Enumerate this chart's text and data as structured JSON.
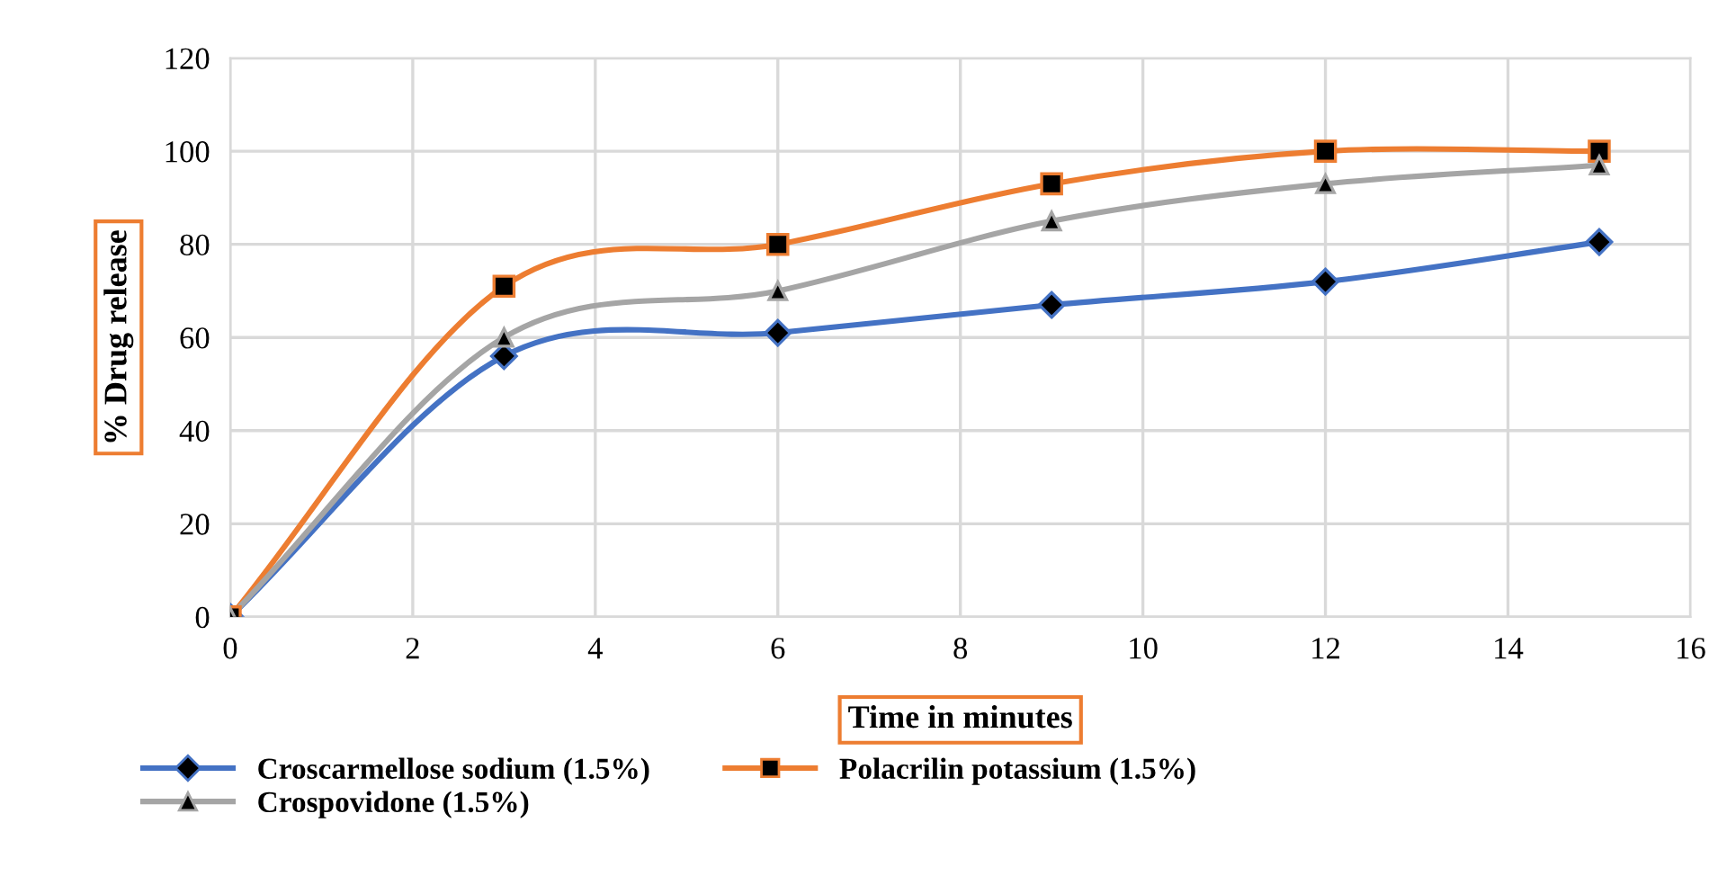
{
  "chart_data": {
    "type": "line",
    "xlabel": "Time in minutes",
    "ylabel": "% Drug release",
    "x": [
      0,
      3,
      6,
      9,
      12,
      15
    ],
    "series": [
      {
        "name": "Croscarmellose sodium (1.5%)",
        "color": "#4472c4",
        "marker": "diamond",
        "values": [
          0,
          56,
          61,
          67,
          72,
          80.5
        ]
      },
      {
        "name": "Polacrilin potassium (1.5%)",
        "color": "#ed7d31",
        "marker": "square",
        "values": [
          0,
          71,
          80,
          93,
          100,
          100
        ]
      },
      {
        "name": "Crospovidone (1.5%)",
        "color": "#a5a5a5",
        "marker": "triangle",
        "values": [
          0,
          60,
          70,
          85,
          93,
          97
        ]
      }
    ],
    "xlim": [
      0,
      16
    ],
    "xticks": [
      0,
      2,
      4,
      6,
      8,
      10,
      12,
      14,
      16
    ],
    "ylim": [
      0,
      120
    ],
    "yticks": [
      0,
      20,
      40,
      60,
      80,
      100,
      120
    ],
    "grid": true,
    "legend": "bottom",
    "line_style": "solid"
  }
}
